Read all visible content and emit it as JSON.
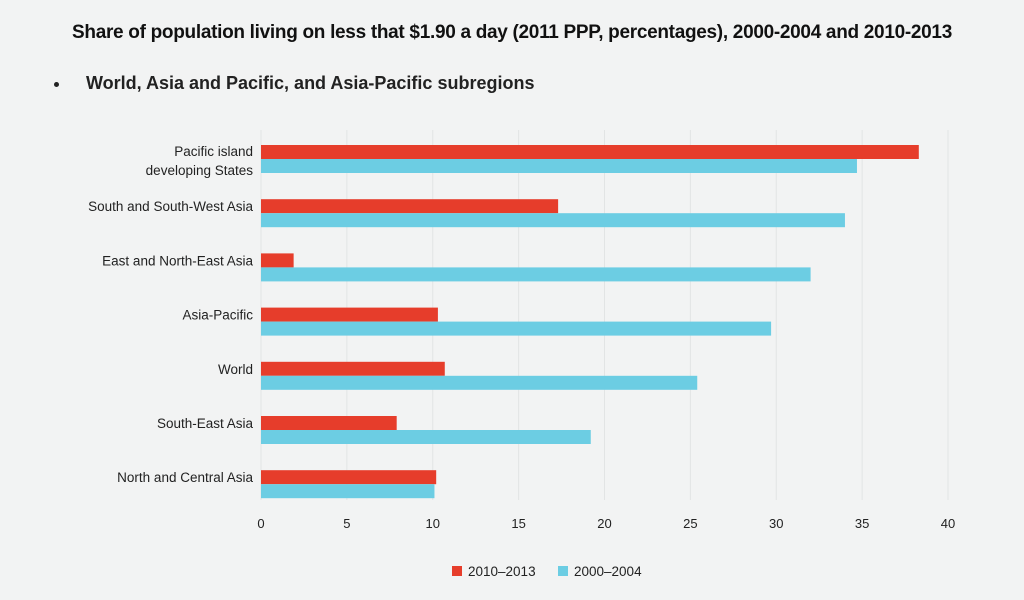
{
  "chart_data": {
    "type": "bar",
    "orientation": "horizontal",
    "title": "Share of population living on less that $1.90 a day (2011 PPP, percentages), 2000-2004 and 2010-2013",
    "subtitle": "World, Asia and Pacific, and Asia-Pacific subregions",
    "categories": [
      [
        "Pacific island",
        "developing States"
      ],
      [
        "South and South-West Asia"
      ],
      [
        "East and North-East Asia"
      ],
      [
        "Asia-Pacific"
      ],
      [
        "World"
      ],
      [
        "South-East Asia"
      ],
      [
        "North and Central Asia"
      ]
    ],
    "series": [
      {
        "name": "2010–2013",
        "color": "#e63d2b",
        "values": [
          38.3,
          17.3,
          1.9,
          10.3,
          10.7,
          7.9,
          10.2
        ]
      },
      {
        "name": "2000–2004",
        "color": "#6ccde3",
        "values": [
          34.7,
          34.0,
          32.0,
          29.7,
          25.4,
          19.2,
          10.1
        ]
      }
    ],
    "xlim": [
      0,
      40
    ],
    "xticks": [
      0,
      5,
      10,
      15,
      20,
      25,
      30,
      35,
      40
    ],
    "grid": true,
    "legend": "bottom-center"
  }
}
